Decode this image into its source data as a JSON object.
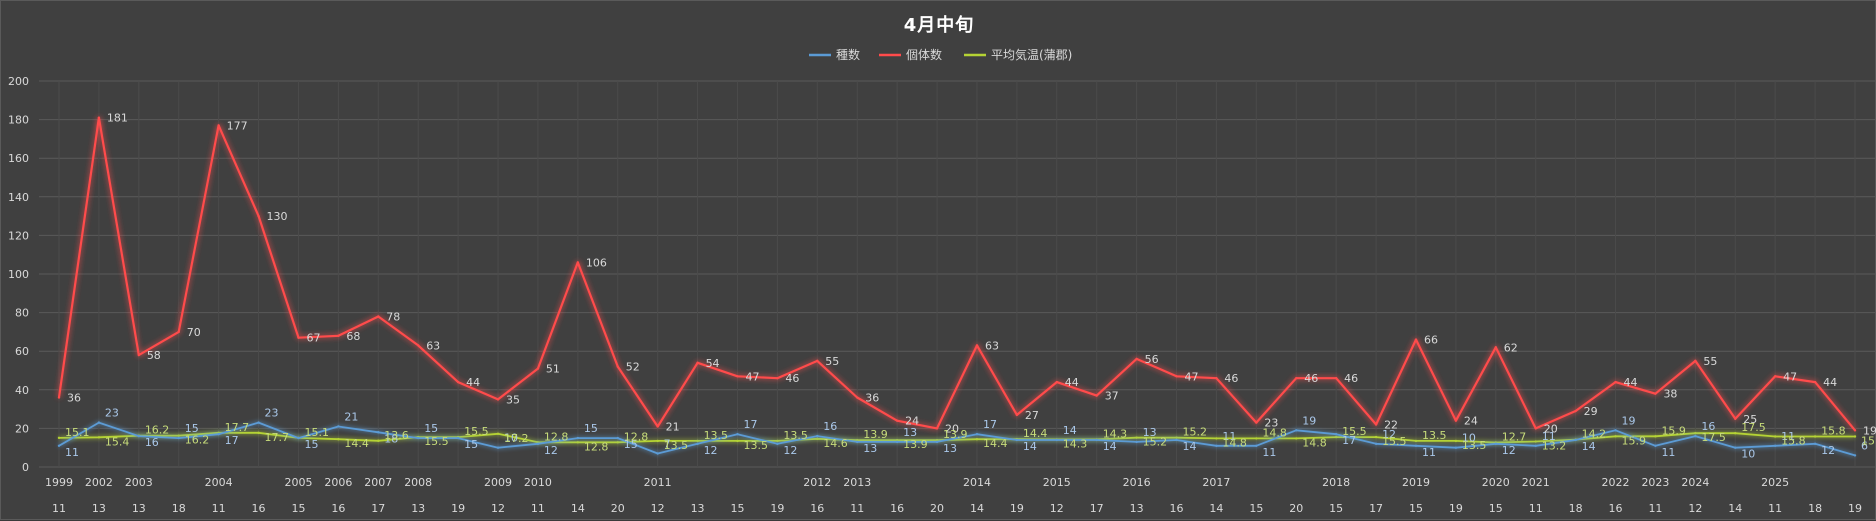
{
  "chart_data": {
    "type": "line",
    "title": "4月中旬",
    "ylim": [
      0,
      200
    ],
    "y_ticks": [
      0,
      20,
      40,
      60,
      80,
      100,
      120,
      140,
      160,
      180,
      200
    ],
    "legend_position": "top",
    "gridlines": true,
    "x_day": [
      11,
      13,
      13,
      18,
      11,
      16,
      15,
      16,
      17,
      13,
      19,
      12,
      11,
      14,
      20,
      12,
      13,
      15,
      19,
      16,
      11,
      16,
      20,
      14,
      19,
      12,
      17,
      13,
      16,
      14,
      15,
      20,
      15,
      17,
      15,
      19,
      15,
      11,
      18,
      16,
      11,
      12,
      14,
      11,
      18,
      19
    ],
    "x_year": [
      "1999",
      "2002",
      "2003",
      "",
      "2004",
      "",
      "2005",
      "2006",
      "2007",
      "2008",
      "",
      "2009",
      "2010",
      "",
      "",
      "2011",
      "",
      "",
      "",
      "2012",
      "2013",
      "",
      "",
      "2014",
      "",
      "2015",
      "",
      "2016",
      "",
      "2017",
      "",
      "",
      "2018",
      "",
      "2019",
      "",
      "2020",
      "2021",
      "",
      "2022",
      "2023",
      "2024",
      "",
      "2025",
      "",
      ""
    ],
    "series": [
      {
        "name": "種数",
        "color": "#5b9bd5",
        "values": [
          11,
          23,
          16,
          15,
          17,
          23,
          15,
          21,
          18,
          15,
          15,
          10,
          12,
          15,
          15,
          7,
          12,
          17,
          12,
          16,
          13,
          13,
          13,
          17,
          14,
          14,
          14,
          13,
          14,
          11,
          11,
          19,
          17,
          12,
          11,
          10,
          12,
          11,
          14,
          19,
          11,
          16,
          10,
          11,
          12,
          6
        ],
        "labels": [
          "11",
          "23",
          "16",
          "15",
          "17",
          "23",
          "15",
          "21",
          "18",
          "15",
          "15",
          "10",
          "12",
          "15",
          "15",
          "7",
          "12",
          "17",
          "12",
          "16",
          "13",
          "13",
          "13",
          "17",
          "14",
          "14",
          "14",
          "13",
          "14",
          "11",
          "11",
          "19",
          "17",
          "12",
          "11",
          "10",
          "12",
          "11",
          "14",
          "19",
          "11",
          "16",
          "10",
          "11",
          "12",
          "6"
        ]
      },
      {
        "name": "個体数",
        "color": "#ff4b4b",
        "values": [
          36,
          181,
          58,
          70,
          177,
          130,
          67,
          68,
          78,
          63,
          44,
          35,
          51,
          106,
          52,
          21,
          54,
          47,
          46,
          55,
          36,
          24,
          20,
          63,
          27,
          44,
          37,
          56,
          47,
          46,
          23,
          46,
          46,
          22,
          66,
          24,
          62,
          20,
          29,
          44,
          38,
          55,
          25,
          47,
          44,
          19
        ],
        "labels": [
          "36",
          "181",
          "58",
          "70",
          "177",
          "130",
          "67",
          "68",
          "78",
          "63",
          "44",
          "35",
          "51",
          "106",
          "52",
          "21",
          "54",
          "47",
          "46",
          "55",
          "36",
          "24",
          "20",
          "63",
          "27",
          "44",
          "37",
          "56",
          "47",
          "46",
          "23",
          "46",
          "46",
          "22",
          "66",
          "24",
          "62",
          "20",
          "29",
          "44",
          "38",
          "55",
          "25",
          "47",
          "44",
          "19"
        ]
      },
      {
        "name": "平均気温(蒲郡)",
        "color": "#b5d334",
        "values": [
          15.1,
          15.4,
          16.2,
          16.2,
          17.7,
          17.7,
          15.1,
          14.4,
          13.6,
          15.5,
          15.5,
          17.2,
          12.8,
          12.8,
          12.8,
          13.5,
          13.5,
          13.5,
          13.5,
          14.6,
          13.9,
          13.9,
          13.9,
          14.4,
          14.4,
          14.3,
          14.3,
          15.2,
          15.2,
          14.8,
          14.8,
          14.8,
          15.5,
          15.5,
          13.5,
          13.5,
          12.7,
          13.2,
          14.2,
          15.9,
          15.9,
          17.5,
          17.5,
          15.8,
          15.8,
          15.8
        ],
        "labels": [
          "15.1",
          "15.4",
          "16.2",
          "16.2",
          "17.7",
          "17.7",
          "15.1",
          "14.4",
          "13.6",
          "15.5",
          "15.5",
          "17.2",
          "12.8",
          "12.8",
          "12.8",
          "13.5",
          "13.5",
          "13.5",
          "13.5",
          "14.6",
          "13.9",
          "13.9",
          "13.9",
          "14.4",
          "14.4",
          "14.3",
          "14.3",
          "15.2",
          "15.2",
          "14.8",
          "14.8",
          "14.8",
          "15.5",
          "15.5",
          "13.5",
          "13.5",
          "12.7",
          "13.2",
          "14.2",
          "15.9",
          "15.9",
          "17.5",
          "17.5",
          "15.8",
          "15.8",
          "15.8"
        ]
      }
    ]
  }
}
